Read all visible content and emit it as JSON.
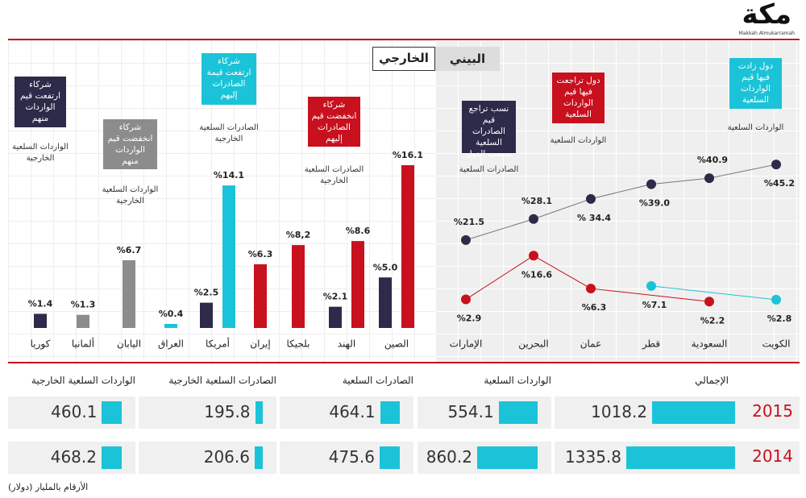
{
  "header": {
    "logo": "مكة",
    "logo_subtitle": "Makkah Almukarramah"
  },
  "tabs": [
    "البيني",
    "الخارجي"
  ],
  "chart_data": [
    {
      "type": "bar",
      "categories": [
        "كوريا",
        "ألمانيا",
        "اليابان",
        "العراق",
        "أمريكا",
        "إيران",
        "بلجيكا",
        "الهند",
        "الصين"
      ],
      "ylim": [
        0,
        16.5
      ],
      "series": [
        {
          "name": "شركاء ارتفعت قيم الواردات منهم",
          "color": "#2d2a4a",
          "values": [
            1.4,
            null,
            null,
            null,
            2.5,
            null,
            null,
            2.1,
            5.0
          ],
          "value_labels": [
            "%1.4",
            null,
            null,
            null,
            "%2.5",
            null,
            null,
            "%2.1",
            "%5.0"
          ]
        },
        {
          "name": "شركاء انخفضت قيم الواردات منهم",
          "color": "#8c8c8c",
          "values": [
            null,
            1.3,
            6.7,
            null,
            null,
            null,
            null,
            null,
            null
          ],
          "value_labels": [
            null,
            "%1.3",
            "%6.7",
            null,
            null,
            null,
            null,
            null,
            null
          ]
        },
        {
          "name": "شركاء ارتفعت قيمة الصادرات إليهم",
          "color": "#1bc3d8",
          "values": [
            null,
            null,
            null,
            0.4,
            14.1,
            null,
            null,
            null,
            null
          ],
          "value_labels": [
            null,
            null,
            null,
            "%0.4",
            "%14.1",
            null,
            null,
            null,
            null
          ]
        },
        {
          "name": "شركاء انخفضت قيم الصادرات إليهم",
          "color": "#c8101e",
          "values": [
            null,
            null,
            null,
            null,
            null,
            6.3,
            8.2,
            8.6,
            16.1
          ],
          "value_labels": [
            null,
            null,
            null,
            null,
            null,
            "%6.3",
            "%8,2",
            "%8.6",
            "%16.1"
          ]
        }
      ],
      "annotations": [
        {
          "text": "شركاء ارتفعت قيم الواردات منهم",
          "subtext": "الواردات السلعية الخارجية",
          "color": "#2d2a4a"
        },
        {
          "text": "شركاء انخفضت قيم الواردات منهم",
          "subtext": "الواردات السلعية الخارجية",
          "color": "#8c8c8c"
        },
        {
          "text": "شركاء ارتفعت قيمة الصادرات إليهم",
          "subtext": "الصادرات السلعية الخارجية",
          "color": "#1bc3d8"
        },
        {
          "text": "شركاء انخفضت قيم الصادرات إليهم",
          "subtext": "الصادرات السلعية الخارجية",
          "color": "#c8101e"
        }
      ]
    },
    {
      "type": "line",
      "categories": [
        "الإمارات",
        "البحرين",
        "عمان",
        "قطر",
        "السعودية",
        "الكويت"
      ],
      "ylim": [
        0,
        48
      ],
      "series": [
        {
          "name": "نسب تراجع قيم الصادرات السلعية بحسب الدول",
          "color": "#2d2a4a",
          "values": [
            21.5,
            28.1,
            34.4,
            39.0,
            40.9,
            45.2
          ],
          "value_labels": [
            "%21.5",
            "%28.1",
            "% 34.4",
            "%39.0",
            "%40.9",
            "%45.2"
          ]
        },
        {
          "name": "دول تراجعت فيها قيم الواردات السلعية",
          "color": "#c8101e",
          "values": [
            2.9,
            16.6,
            6.3,
            null,
            2.2,
            null
          ],
          "value_labels": [
            "%2.9",
            "%16.6",
            "%6.3",
            null,
            "%2.2",
            null
          ]
        },
        {
          "name": "دول زادت فيها قيم الواردات السلعية",
          "color": "#1bc3d8",
          "values": [
            null,
            null,
            null,
            7.1,
            null,
            2.8
          ],
          "value_labels": [
            null,
            null,
            null,
            "%7.1",
            null,
            "%2.8"
          ]
        }
      ],
      "annotations": [
        {
          "text": "نسب تراجع قيم الصادرات السلعية بحسب الدول",
          "subtext": "الصادرات السلعية",
          "color": "#2d2a4a"
        },
        {
          "text": "دول تراجعت فيها قيم الواردات السلعية",
          "subtext": "الواردات السلعية",
          "color": "#c8101e"
        },
        {
          "text": "دول زادت فيها قيم الواردات السلعية",
          "subtext": "الواردات السلعية",
          "color": "#1bc3d8"
        }
      ]
    }
  ],
  "table": {
    "columns": [
      "الإجمالي",
      "الواردات السلعية",
      "الصادرات السلعية",
      "الصادرات السلعية الخارجية",
      "الواردات السلعية الخارجية"
    ],
    "rows": [
      {
        "year": "2015",
        "values": [
          1018.2,
          554.1,
          464.1,
          195.8,
          460.1
        ]
      },
      {
        "year": "2014",
        "values": [
          1335.8,
          860.2,
          475.6,
          206.6,
          468.2
        ]
      }
    ]
  },
  "note": "الأرقام بالمليار (دولار)"
}
